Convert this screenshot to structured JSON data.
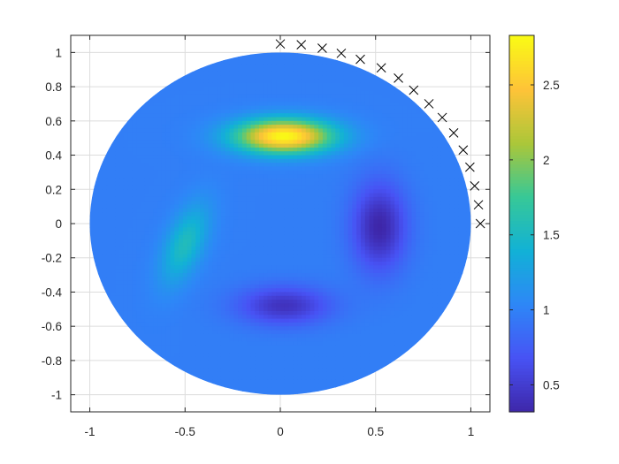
{
  "chart_data": {
    "type": "heatmap",
    "plot_kind": "polar-disk field on a circular mesh with electrode markers",
    "title": "",
    "xlabel": "",
    "ylabel": "",
    "xlim": [
      -1.1,
      1.1
    ],
    "ylim": [
      -1.1,
      1.1
    ],
    "grid": true,
    "x_ticks": [
      -1,
      -0.5,
      0,
      0.5,
      1
    ],
    "x_tick_labels": [
      "-1",
      "-0.5",
      "0",
      "0.5",
      "1"
    ],
    "y_ticks": [
      1,
      0.8,
      0.6,
      0.4,
      0.2,
      0,
      -0.2,
      -0.4,
      -0.6,
      -0.8,
      -1
    ],
    "y_tick_labels": [
      "1",
      "0.8",
      "0.6",
      "0.4",
      "0.2",
      "0",
      "-0.2",
      "-0.4",
      "-0.6",
      "-0.8",
      "-1"
    ],
    "colormap": "parula",
    "colorbar": {
      "range": [
        0.32,
        2.83
      ],
      "ticks": [
        2.5,
        2,
        1.5,
        1,
        0.5
      ],
      "tick_labels": [
        "2.5",
        "2",
        "1.5",
        "1",
        "0.5"
      ]
    },
    "disk": {
      "center": [
        0,
        0
      ],
      "radius": 1,
      "background_value": 0.98
    },
    "anomalies": [
      {
        "x": 0.02,
        "y": 0.51,
        "value": 2.83,
        "sx": 0.18,
        "sy": 0.07,
        "rotation_deg": 0
      },
      {
        "x": -0.5,
        "y": -0.12,
        "value": 1.55,
        "sx": 0.07,
        "sy": 0.17,
        "rotation_deg": -20
      },
      {
        "x": 0.52,
        "y": -0.02,
        "value": 0.32,
        "sx": 0.1,
        "sy": 0.18,
        "rotation_deg": 0
      },
      {
        "x": 0.02,
        "y": -0.48,
        "value": 0.42,
        "sx": 0.17,
        "sy": 0.08,
        "rotation_deg": 0
      }
    ],
    "markers": {
      "symbol": "x",
      "color": "#000000",
      "points": [
        [
          0.0,
          1.05
        ],
        [
          0.11,
          1.045
        ],
        [
          0.22,
          1.025
        ],
        [
          0.32,
          0.995
        ],
        [
          0.42,
          0.96
        ],
        [
          0.53,
          0.91
        ],
        [
          0.62,
          0.85
        ],
        [
          0.7,
          0.78
        ],
        [
          0.78,
          0.7
        ],
        [
          0.85,
          0.62
        ],
        [
          0.91,
          0.53
        ],
        [
          0.96,
          0.43
        ],
        [
          0.995,
          0.33
        ],
        [
          1.02,
          0.22
        ],
        [
          1.04,
          0.11
        ],
        [
          1.05,
          0.0
        ]
      ]
    },
    "colors": {
      "axis": "#262626",
      "grid": "#dcdcdc",
      "marker": "#000000"
    }
  }
}
